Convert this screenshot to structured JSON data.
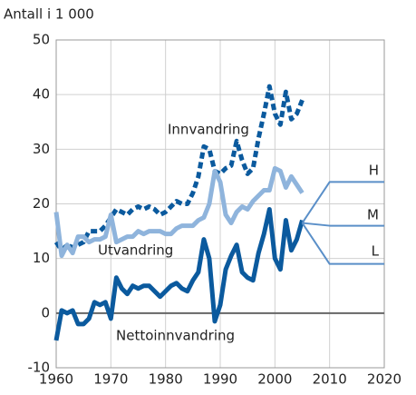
{
  "chart_data": {
    "type": "line",
    "y_label": "Antall i 1 000",
    "xlim": [
      1960,
      2020
    ],
    "xticks": [
      1960,
      1970,
      1980,
      1990,
      2000,
      2010,
      2020
    ],
    "ylim": [
      -10,
      50
    ],
    "yticks": [
      -10,
      0,
      10,
      20,
      30,
      40,
      50
    ],
    "grid": true,
    "series": [
      {
        "name": "Innvandring",
        "color": "#0b5a9e",
        "dashed": true,
        "x": [
          1960,
          1961,
          1962,
          1963,
          1964,
          1965,
          1966,
          1967,
          1968,
          1969,
          1970,
          1971,
          1972,
          1973,
          1974,
          1975,
          1976,
          1977,
          1978,
          1979,
          1980,
          1981,
          1982,
          1983,
          1984,
          1985,
          1986,
          1987,
          1988,
          1989,
          1990,
          1991,
          1992,
          1993,
          1994,
          1995,
          1996,
          1997,
          1998,
          1999,
          2000,
          2001,
          2002,
          2003,
          2004,
          2005
        ],
        "values": [
          13,
          11.5,
          12.5,
          12,
          12.5,
          13,
          15,
          15,
          15,
          16,
          17.5,
          19,
          18.5,
          18,
          19,
          19.5,
          19,
          19.5,
          19,
          18,
          18.5,
          19.5,
          20.5,
          20,
          20,
          22,
          25,
          30.5,
          30,
          26,
          25.5,
          26.5,
          27,
          31.5,
          28,
          25.5,
          26.5,
          32,
          36.5,
          41.5,
          36.5,
          34.5,
          40.5,
          35.5,
          36.5,
          39
        ]
      },
      {
        "name": "Utvandring",
        "color": "#8fb4dc",
        "dashed": false,
        "x": [
          1960,
          1961,
          1962,
          1963,
          1964,
          1965,
          1966,
          1967,
          1968,
          1969,
          1970,
          1971,
          1972,
          1973,
          1974,
          1975,
          1976,
          1977,
          1978,
          1979,
          1980,
          1981,
          1982,
          1983,
          1984,
          1985,
          1986,
          1987,
          1988,
          1989,
          1990,
          1991,
          1992,
          1993,
          1994,
          1995,
          1996,
          1997,
          1998,
          1999,
          2000,
          2001,
          2002,
          2003,
          2004,
          2005
        ],
        "values": [
          18.5,
          10.5,
          12.5,
          11,
          14,
          14,
          13,
          13.5,
          13.5,
          14,
          18,
          13,
          13.5,
          14,
          14,
          15,
          14.5,
          15,
          15,
          15,
          14.5,
          14.5,
          15.5,
          16,
          16,
          16,
          17,
          17.5,
          20,
          26,
          24,
          18,
          16.5,
          18.5,
          19.5,
          19,
          20.5,
          21.5,
          22.5,
          22.5,
          26.5,
          26,
          23,
          25,
          23.5,
          22
        ]
      },
      {
        "name": "Nettoinnvandring",
        "color": "#0b5a9e",
        "dashed": false,
        "x": [
          1960,
          1961,
          1962,
          1963,
          1964,
          1965,
          1966,
          1967,
          1968,
          1969,
          1970,
          1971,
          1972,
          1973,
          1974,
          1975,
          1976,
          1977,
          1978,
          1979,
          1980,
          1981,
          1982,
          1983,
          1984,
          1985,
          1986,
          1987,
          1988,
          1989,
          1990,
          1991,
          1992,
          1993,
          1994,
          1995,
          1996,
          1997,
          1998,
          1999,
          2000,
          2001,
          2002,
          2003,
          2004,
          2005
        ],
        "values": [
          -5,
          0.5,
          0,
          0.5,
          -2,
          -2,
          -1,
          2,
          1.5,
          2,
          -1,
          6.5,
          4.5,
          3.5,
          5,
          4.5,
          5,
          5,
          4,
          3,
          4,
          5,
          5.5,
          4.5,
          4,
          6,
          7.5,
          13.5,
          10,
          -1.5,
          1.5,
          8,
          10.5,
          12.5,
          7.5,
          6.5,
          6,
          11,
          14.5,
          19,
          10,
          8,
          17,
          11.5,
          13.5,
          17
        ]
      },
      {
        "name": "H",
        "color": "#5a8fc8",
        "dashed": false,
        "x": [
          2005,
          2010,
          2020
        ],
        "values": [
          16.5,
          24,
          24
        ]
      },
      {
        "name": "M",
        "color": "#5a8fc8",
        "dashed": false,
        "x": [
          2005,
          2010,
          2020
        ],
        "values": [
          16.5,
          16,
          16
        ]
      },
      {
        "name": "L",
        "color": "#5a8fc8",
        "dashed": false,
        "x": [
          2005,
          2010,
          2020
        ],
        "values": [
          16.5,
          9,
          9
        ]
      }
    ]
  }
}
